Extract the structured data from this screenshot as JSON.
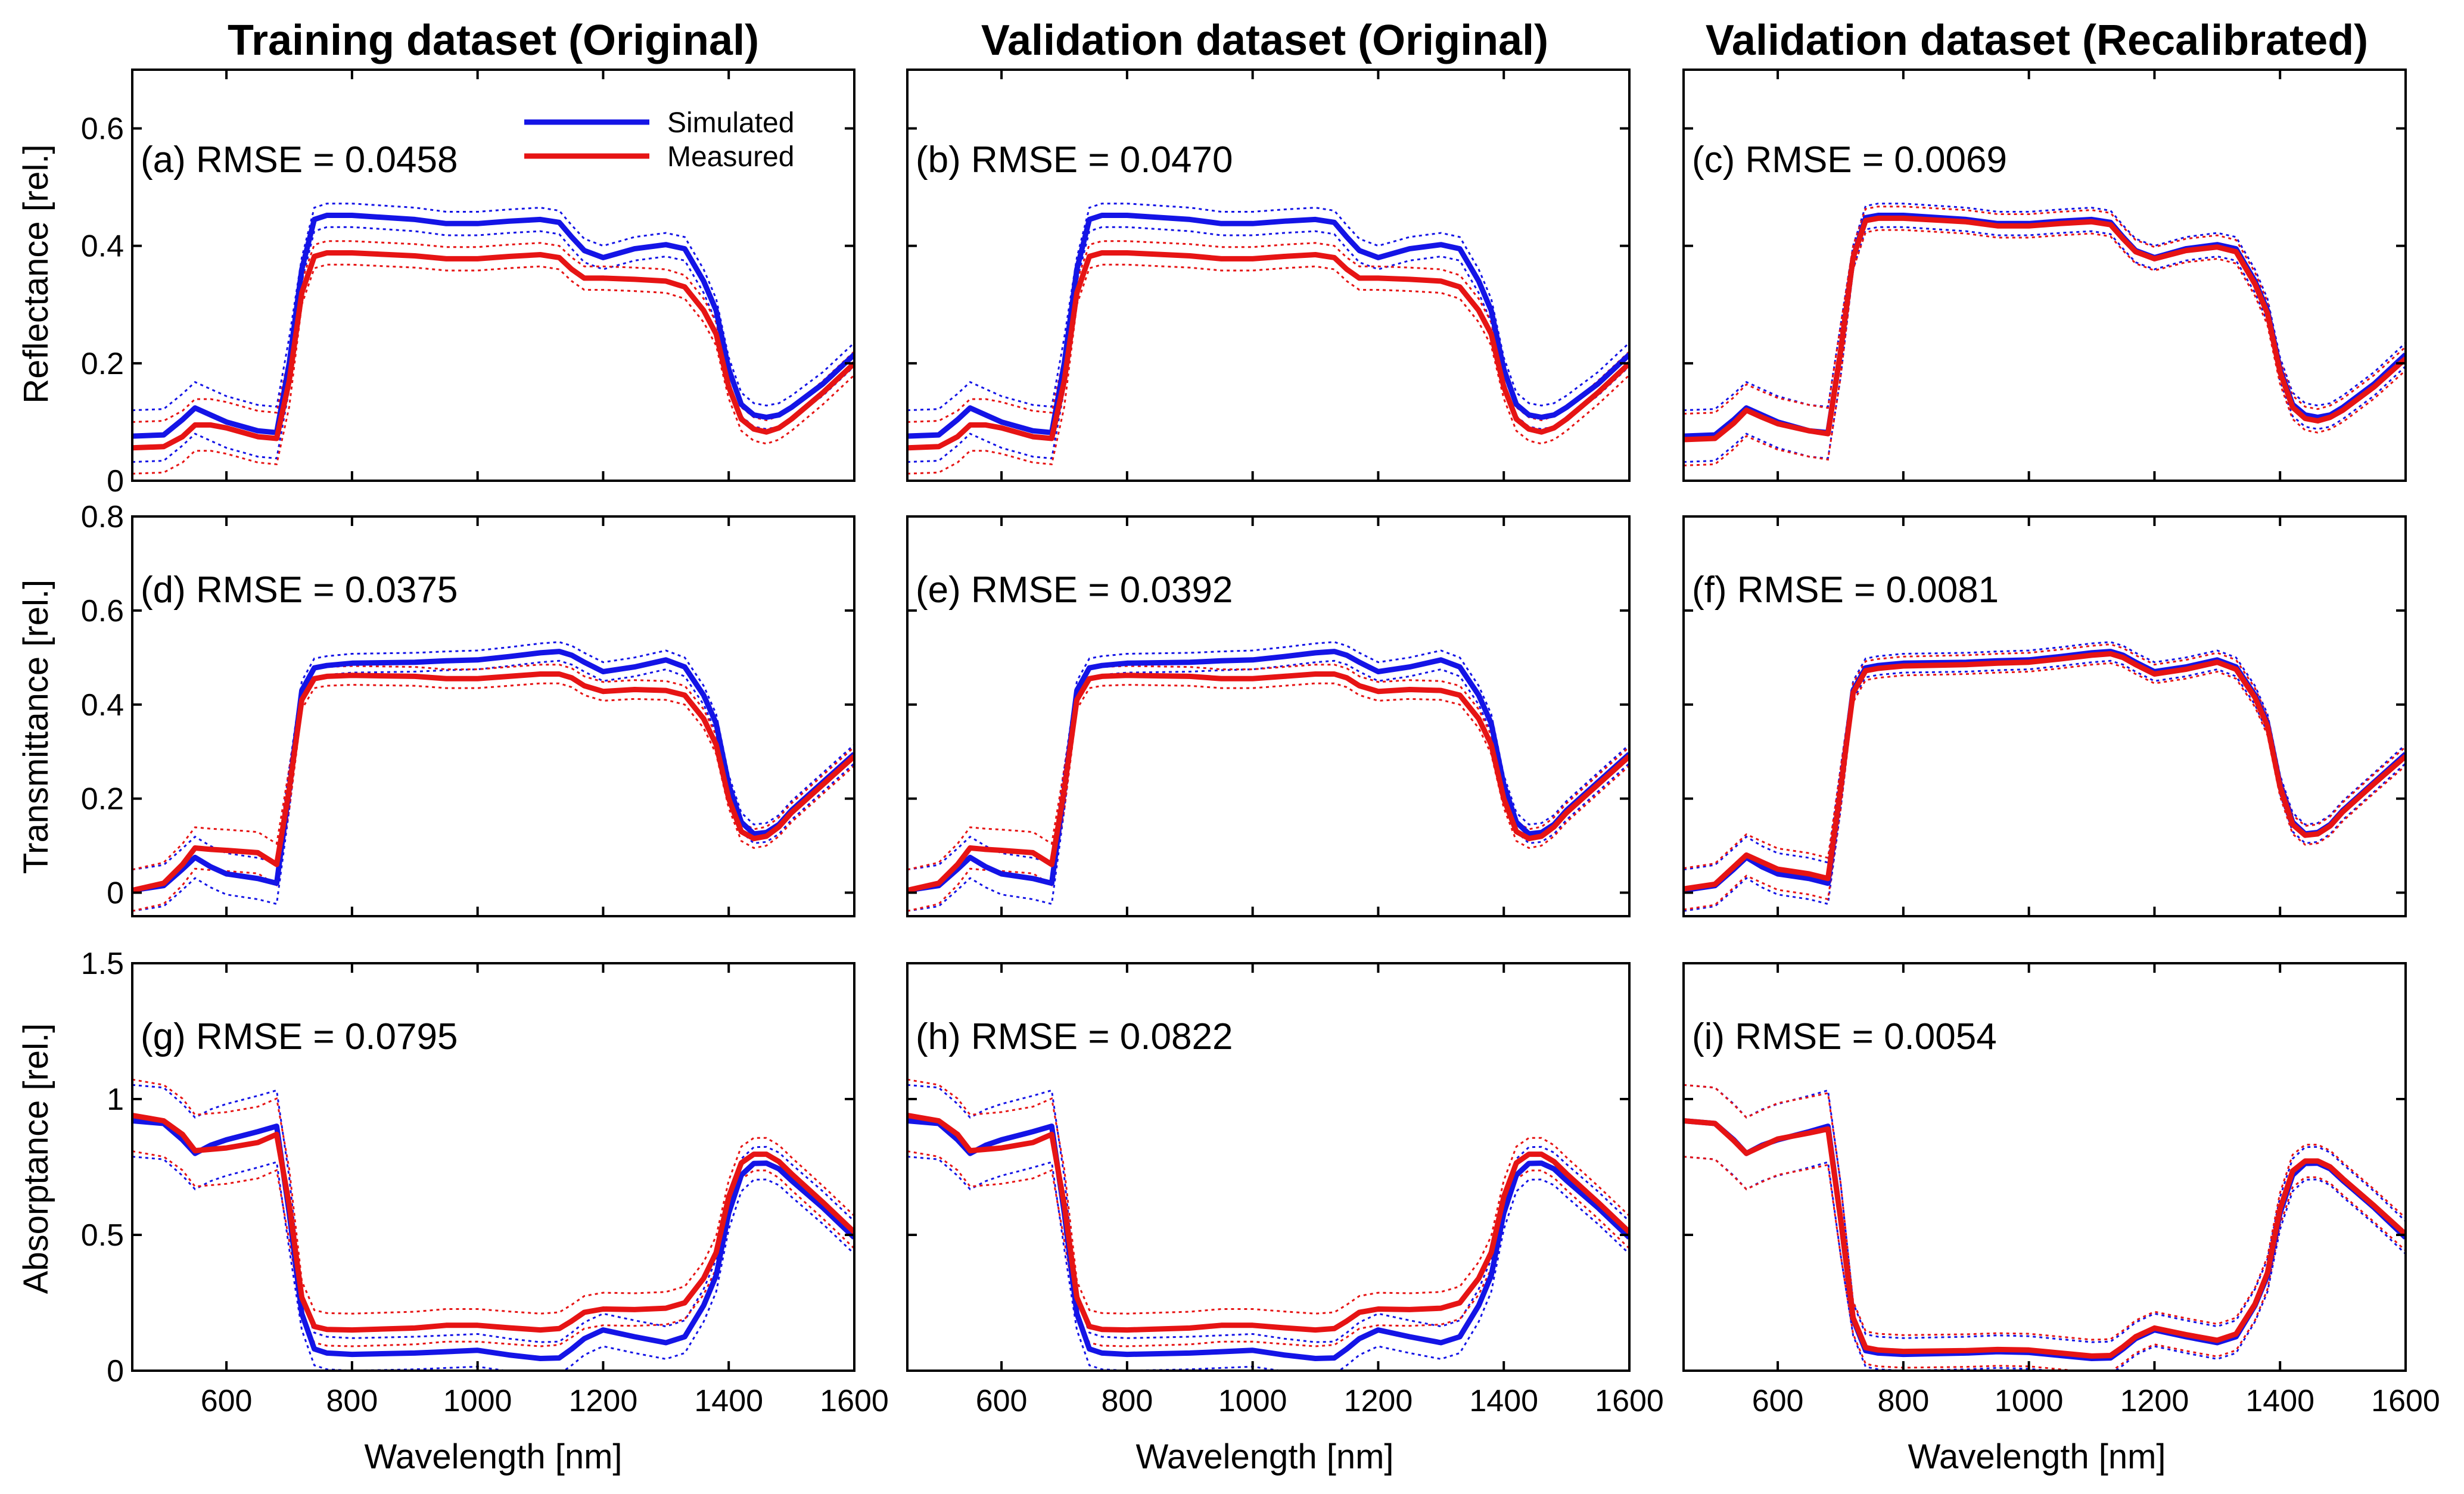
{
  "figure": {
    "column_titles": [
      "Training dataset (Original)",
      "Validation dataset (Original)",
      "Validation dataset (Recalibrated)"
    ],
    "legend": {
      "simulated_label": "Simulated",
      "measured_label": "Measured"
    },
    "colors": {
      "simulated": "#1414e6",
      "measured": "#e61414",
      "axis": "#000000"
    }
  },
  "chart_data": [
    {
      "type": "line",
      "panel": "a",
      "annotation": "(a) RMSE = 0.0458",
      "title": "Training dataset (Original)",
      "xlabel": "",
      "ylabel": "Reflectance [rel.]",
      "xlim": [
        450,
        1600
      ],
      "ylim": [
        0,
        0.7
      ],
      "xticks": [
        600,
        800,
        1000,
        1200,
        1400,
        1600
      ],
      "yticks": [
        0,
        0.2,
        0.4,
        0.6
      ],
      "quantity": "R",
      "calibration": "original",
      "series": [
        {
          "name": "Simulated"
        },
        {
          "name": "Measured"
        }
      ],
      "rmse": 0.0458
    },
    {
      "type": "line",
      "panel": "b",
      "annotation": "(b) RMSE = 0.0470",
      "title": "Validation dataset (Original)",
      "xlabel": "",
      "ylabel": "",
      "xlim": [
        450,
        1600
      ],
      "ylim": [
        0,
        0.7
      ],
      "xticks": [
        600,
        800,
        1000,
        1200,
        1400,
        1600
      ],
      "yticks": [
        0,
        0.2,
        0.4,
        0.6
      ],
      "quantity": "R",
      "calibration": "original",
      "series": [
        {
          "name": "Simulated"
        },
        {
          "name": "Measured"
        }
      ],
      "rmse": 0.047
    },
    {
      "type": "line",
      "panel": "c",
      "annotation": "(c) RMSE = 0.0069",
      "title": "Validation dataset (Recalibrated)",
      "xlabel": "",
      "ylabel": "",
      "xlim": [
        450,
        1600
      ],
      "ylim": [
        0,
        0.7
      ],
      "xticks": [
        600,
        800,
        1000,
        1200,
        1400,
        1600
      ],
      "yticks": [
        0,
        0.2,
        0.4,
        0.6
      ],
      "quantity": "R",
      "calibration": "recalibrated",
      "series": [
        {
          "name": "Simulated"
        },
        {
          "name": "Measured"
        }
      ],
      "rmse": 0.0069
    },
    {
      "type": "line",
      "panel": "d",
      "annotation": "(d) RMSE = 0.0375",
      "xlabel": "",
      "ylabel": "Transmittance [rel.]",
      "xlim": [
        450,
        1600
      ],
      "ylim": [
        -0.05,
        0.8
      ],
      "xticks": [
        600,
        800,
        1000,
        1200,
        1400,
        1600
      ],
      "yticks": [
        0,
        0.2,
        0.4,
        0.6,
        0.8
      ],
      "quantity": "T",
      "calibration": "original",
      "series": [
        {
          "name": "Simulated"
        },
        {
          "name": "Measured"
        }
      ],
      "rmse": 0.0375
    },
    {
      "type": "line",
      "panel": "e",
      "annotation": "(e) RMSE = 0.0392",
      "xlabel": "",
      "ylabel": "",
      "xlim": [
        450,
        1600
      ],
      "ylim": [
        -0.05,
        0.8
      ],
      "xticks": [
        600,
        800,
        1000,
        1200,
        1400,
        1600
      ],
      "yticks": [
        0,
        0.2,
        0.4,
        0.6,
        0.8
      ],
      "quantity": "T",
      "calibration": "original",
      "series": [
        {
          "name": "Simulated"
        },
        {
          "name": "Measured"
        }
      ],
      "rmse": 0.0392
    },
    {
      "type": "line",
      "panel": "f",
      "annotation": "(f) RMSE = 0.0081",
      "xlabel": "",
      "ylabel": "",
      "xlim": [
        450,
        1600
      ],
      "ylim": [
        -0.05,
        0.8
      ],
      "xticks": [
        600,
        800,
        1000,
        1200,
        1400,
        1600
      ],
      "yticks": [
        0,
        0.2,
        0.4,
        0.6,
        0.8
      ],
      "quantity": "T",
      "calibration": "recalibrated",
      "series": [
        {
          "name": "Simulated"
        },
        {
          "name": "Measured"
        }
      ],
      "rmse": 0.0081
    },
    {
      "type": "line",
      "panel": "g",
      "annotation": "(g) RMSE = 0.0795",
      "xlabel": "Wavelength [nm]",
      "ylabel": "Absorptance [rel.]",
      "xlim": [
        450,
        1600
      ],
      "ylim": [
        0,
        1.5
      ],
      "xticks": [
        600,
        800,
        1000,
        1200,
        1400,
        1600
      ],
      "yticks": [
        0,
        0.5,
        1,
        1.5
      ],
      "quantity": "A",
      "calibration": "original",
      "series": [
        {
          "name": "Simulated"
        },
        {
          "name": "Measured"
        }
      ],
      "rmse": 0.0795
    },
    {
      "type": "line",
      "panel": "h",
      "annotation": "(h) RMSE = 0.0822",
      "xlabel": "Wavelength [nm]",
      "ylabel": "",
      "xlim": [
        450,
        1600
      ],
      "ylim": [
        0,
        1.5
      ],
      "xticks": [
        600,
        800,
        1000,
        1200,
        1400,
        1600
      ],
      "yticks": [
        0,
        0.5,
        1,
        1.5
      ],
      "quantity": "A",
      "calibration": "original",
      "series": [
        {
          "name": "Simulated"
        },
        {
          "name": "Measured"
        }
      ],
      "rmse": 0.0822
    },
    {
      "type": "line",
      "panel": "i",
      "annotation": "(i) RMSE = 0.0054",
      "xlabel": "Wavelength [nm]",
      "ylabel": "",
      "xlim": [
        450,
        1600
      ],
      "ylim": [
        0,
        1.5
      ],
      "xticks": [
        600,
        800,
        1000,
        1200,
        1400,
        1600
      ],
      "yticks": [
        0,
        0.5,
        1,
        1.5
      ],
      "quantity": "A",
      "calibration": "recalibrated",
      "series": [
        {
          "name": "Simulated"
        },
        {
          "name": "Measured"
        }
      ],
      "rmse": 0.0054
    }
  ],
  "curves": {
    "wavelengths": [
      450,
      500,
      530,
      550,
      575,
      600,
      650,
      680,
      700,
      720,
      740,
      760,
      800,
      900,
      950,
      1000,
      1050,
      1100,
      1130,
      1150,
      1170,
      1200,
      1250,
      1300,
      1330,
      1360,
      1380,
      1400,
      1420,
      1440,
      1460,
      1480,
      1500,
      1550,
      1600
    ],
    "R": {
      "original": {
        "simulated": [
          0.076,
          0.078,
          0.104,
          0.124,
          0.112,
          0.1,
          0.085,
          0.082,
          0.2,
          0.36,
          0.445,
          0.452,
          0.452,
          0.445,
          0.438,
          0.438,
          0.442,
          0.445,
          0.44,
          0.415,
          0.392,
          0.38,
          0.395,
          0.402,
          0.395,
          0.34,
          0.29,
          0.19,
          0.13,
          0.112,
          0.108,
          0.112,
          0.125,
          0.165,
          0.215
        ],
        "measured": [
          0.056,
          0.058,
          0.075,
          0.095,
          0.095,
          0.09,
          0.075,
          0.072,
          0.17,
          0.32,
          0.382,
          0.388,
          0.388,
          0.383,
          0.378,
          0.378,
          0.382,
          0.385,
          0.38,
          0.36,
          0.345,
          0.345,
          0.343,
          0.34,
          0.33,
          0.29,
          0.25,
          0.16,
          0.105,
          0.088,
          0.083,
          0.09,
          0.105,
          0.15,
          0.2
        ]
      },
      "recalibrated": {
        "simulated": [
          0.076,
          0.078,
          0.104,
          0.124,
          0.112,
          0.1,
          0.085,
          0.082,
          0.22,
          0.38,
          0.448,
          0.452,
          0.452,
          0.445,
          0.438,
          0.438,
          0.442,
          0.445,
          0.44,
          0.415,
          0.392,
          0.38,
          0.395,
          0.402,
          0.395,
          0.34,
          0.29,
          0.19,
          0.13,
          0.112,
          0.108,
          0.112,
          0.125,
          0.165,
          0.215
        ],
        "measured": [
          0.07,
          0.072,
          0.098,
          0.12,
          0.108,
          0.097,
          0.085,
          0.08,
          0.22,
          0.38,
          0.443,
          0.447,
          0.447,
          0.441,
          0.434,
          0.434,
          0.438,
          0.441,
          0.436,
          0.412,
          0.39,
          0.378,
          0.392,
          0.398,
          0.39,
          0.335,
          0.285,
          0.185,
          0.125,
          0.106,
          0.102,
          0.108,
          0.12,
          0.16,
          0.208
        ]
      }
    },
    "T": {
      "original": {
        "simulated": [
          0.005,
          0.015,
          0.05,
          0.075,
          0.055,
          0.04,
          0.03,
          0.02,
          0.22,
          0.43,
          0.478,
          0.483,
          0.488,
          0.49,
          0.493,
          0.495,
          0.502,
          0.51,
          0.513,
          0.505,
          0.49,
          0.47,
          0.48,
          0.495,
          0.48,
          0.42,
          0.36,
          0.23,
          0.15,
          0.125,
          0.128,
          0.145,
          0.175,
          0.235,
          0.295
        ],
        "measured": [
          0.005,
          0.02,
          0.06,
          0.095,
          0.092,
          0.09,
          0.085,
          0.06,
          0.22,
          0.41,
          0.455,
          0.46,
          0.462,
          0.46,
          0.455,
          0.455,
          0.46,
          0.465,
          0.465,
          0.457,
          0.44,
          0.428,
          0.432,
          0.43,
          0.42,
          0.37,
          0.315,
          0.2,
          0.13,
          0.115,
          0.12,
          0.14,
          0.17,
          0.23,
          0.29
        ]
      },
      "recalibrated": {
        "simulated": [
          0.005,
          0.015,
          0.05,
          0.075,
          0.055,
          0.04,
          0.03,
          0.02,
          0.22,
          0.43,
          0.478,
          0.483,
          0.488,
          0.49,
          0.493,
          0.495,
          0.502,
          0.51,
          0.513,
          0.505,
          0.49,
          0.47,
          0.48,
          0.495,
          0.48,
          0.42,
          0.36,
          0.23,
          0.15,
          0.125,
          0.128,
          0.145,
          0.175,
          0.235,
          0.295
        ],
        "measured": [
          0.008,
          0.018,
          0.055,
          0.08,
          0.065,
          0.05,
          0.04,
          0.03,
          0.22,
          0.425,
          0.472,
          0.477,
          0.482,
          0.485,
          0.488,
          0.49,
          0.497,
          0.505,
          0.508,
          0.5,
          0.485,
          0.465,
          0.475,
          0.49,
          0.475,
          0.415,
          0.355,
          0.225,
          0.145,
          0.122,
          0.125,
          0.142,
          0.172,
          0.232,
          0.29
        ]
      }
    },
    "A": {
      "original": {
        "simulated": [
          0.92,
          0.91,
          0.85,
          0.8,
          0.83,
          0.85,
          0.88,
          0.9,
          0.58,
          0.21,
          0.08,
          0.065,
          0.06,
          0.065,
          0.07,
          0.075,
          0.058,
          0.045,
          0.047,
          0.08,
          0.118,
          0.15,
          0.125,
          0.103,
          0.125,
          0.24,
          0.35,
          0.58,
          0.72,
          0.763,
          0.764,
          0.743,
          0.7,
          0.6,
          0.49
        ],
        "measured": [
          0.94,
          0.92,
          0.87,
          0.81,
          0.815,
          0.82,
          0.84,
          0.87,
          0.61,
          0.27,
          0.163,
          0.152,
          0.15,
          0.157,
          0.167,
          0.167,
          0.158,
          0.15,
          0.155,
          0.183,
          0.215,
          0.227,
          0.225,
          0.23,
          0.25,
          0.34,
          0.435,
          0.64,
          0.765,
          0.797,
          0.797,
          0.77,
          0.725,
          0.62,
          0.51
        ]
      },
      "recalibrated": {
        "simulated": [
          0.92,
          0.91,
          0.85,
          0.8,
          0.83,
          0.85,
          0.88,
          0.9,
          0.56,
          0.19,
          0.074,
          0.065,
          0.06,
          0.065,
          0.07,
          0.067,
          0.056,
          0.045,
          0.047,
          0.08,
          0.118,
          0.15,
          0.125,
          0.103,
          0.125,
          0.24,
          0.35,
          0.58,
          0.72,
          0.763,
          0.764,
          0.743,
          0.7,
          0.6,
          0.49
        ],
        "measured": [
          0.92,
          0.91,
          0.847,
          0.8,
          0.827,
          0.853,
          0.875,
          0.89,
          0.56,
          0.195,
          0.085,
          0.076,
          0.071,
          0.074,
          0.078,
          0.076,
          0.065,
          0.054,
          0.056,
          0.088,
          0.125,
          0.157,
          0.133,
          0.112,
          0.135,
          0.245,
          0.36,
          0.595,
          0.735,
          0.772,
          0.772,
          0.75,
          0.707,
          0.607,
          0.502
        ]
      }
    }
  }
}
